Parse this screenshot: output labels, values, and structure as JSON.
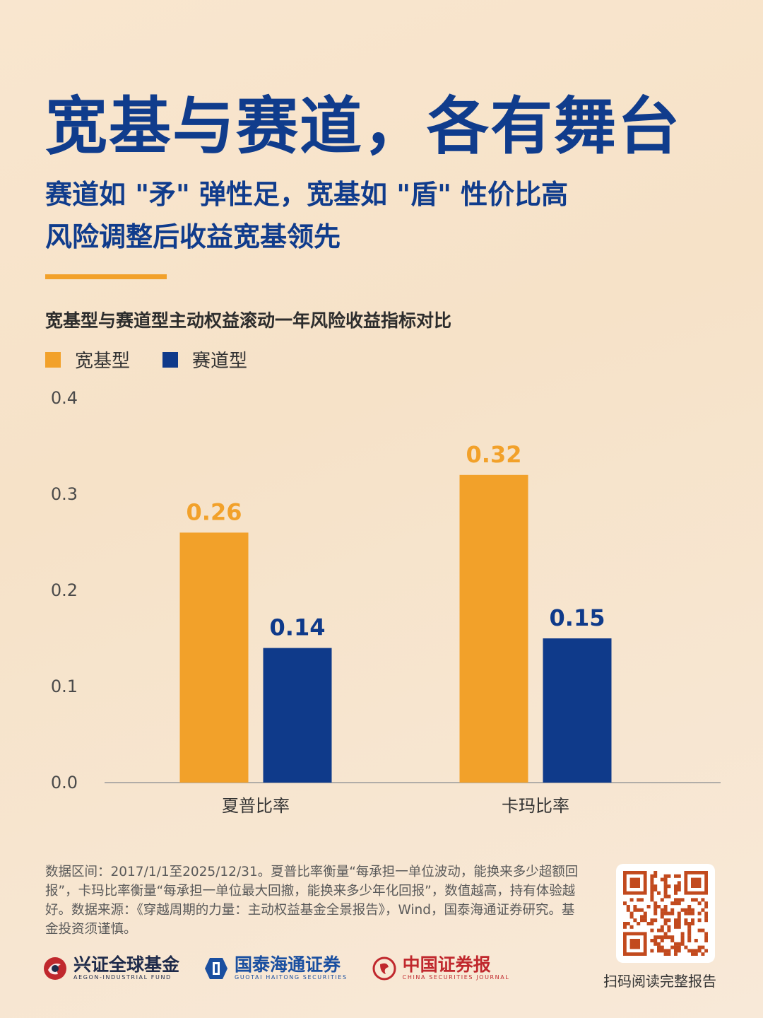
{
  "title": "宽基与赛道，各有舞台",
  "subtitle_lines": [
    "赛道如 \"矛\" 弹性足，宽基如 \"盾\" 性价比高",
    "风险调整后收益宽基领先"
  ],
  "colors": {
    "accent_orange": "#f2a12a",
    "navy": "#0f3a8a",
    "title_blue": "#103c8c"
  },
  "chart_data": {
    "type": "bar",
    "title": "宽基型与赛道型主动权益滚动一年风险收益指标对比",
    "categories": [
      "夏普比率",
      "卡玛比率"
    ],
    "series": [
      {
        "name": "宽基型",
        "values": [
          0.26,
          0.32
        ],
        "color": "#f2a12a"
      },
      {
        "name": "赛道型",
        "values": [
          0.14,
          0.15
        ],
        "color": "#0f3a8a"
      }
    ],
    "ylim": [
      0,
      0.4
    ],
    "yticks": [
      "0.0",
      "0.1",
      "0.2",
      "0.3",
      "0.4"
    ],
    "grid": false,
    "legend": "top-left"
  },
  "footnote": "数据区间：2017/1/1至2025/12/31。夏普比率衡量“每承担一单位波动，能换来多少超额回报”，卡玛比率衡量“每承担一单位最大回撤，能换来多少年化回报”，数值越高，持有体验越好。数据来源：《穿越周期的力量：主动权益基金全景报告》，Wind，国泰海通证券研究。基金投资须谨慎。",
  "qr_caption": "扫码阅读完整报告",
  "logos": [
    {
      "name": "兴证全球基金",
      "en": "AEGON-INDUSTRIAL FUND",
      "color": "#1e2a4a",
      "icon": "aegon-logo-icon"
    },
    {
      "name": "国泰海通证券",
      "en": "GUOTAI HAITONG SECURITIES",
      "color": "#1a4fa0",
      "icon": "guotai-haitong-logo-icon"
    },
    {
      "name": "中国证券报",
      "en": "CHINA SECURITIES JOURNAL",
      "color": "#c0282d",
      "icon": "cs-journal-logo-icon"
    }
  ]
}
